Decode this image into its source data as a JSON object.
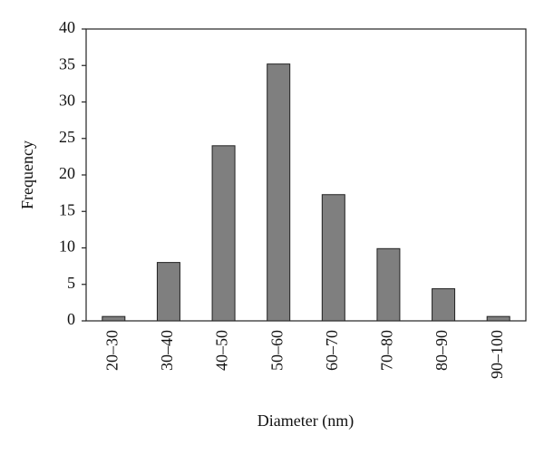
{
  "chart_data": {
    "type": "bar",
    "x_label": "Diameter (nm)",
    "y_label": "Frequency",
    "categories": [
      "20–30",
      "30–40",
      "40–50",
      "50–60",
      "60–70",
      "70–80",
      "80–90",
      "90–100"
    ],
    "values": [
      0.6,
      8,
      24,
      35.2,
      17.3,
      9.9,
      4.4,
      0.6
    ],
    "color": "#7f7f7f",
    "ylim": [
      0,
      40
    ],
    "yticks": [
      0,
      5,
      10,
      15,
      20,
      25,
      30,
      35,
      40
    ]
  }
}
